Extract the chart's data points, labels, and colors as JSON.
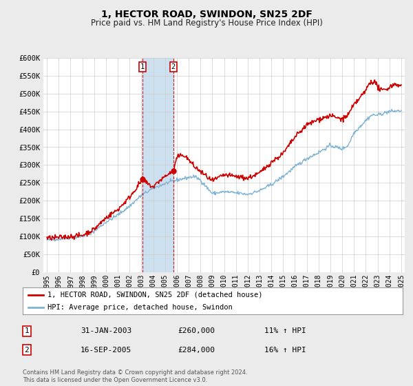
{
  "title": "1, HECTOR ROAD, SWINDON, SN25 2DF",
  "subtitle": "Price paid vs. HM Land Registry's House Price Index (HPI)",
  "ylim": [
    0,
    600000
  ],
  "yticks": [
    0,
    50000,
    100000,
    150000,
    200000,
    250000,
    300000,
    350000,
    400000,
    450000,
    500000,
    550000,
    600000
  ],
  "ytick_labels": [
    "£0",
    "£50K",
    "£100K",
    "£150K",
    "£200K",
    "£250K",
    "£300K",
    "£350K",
    "£400K",
    "£450K",
    "£500K",
    "£550K",
    "£600K"
  ],
  "xlim_start": 1994.7,
  "xlim_end": 2025.3,
  "xtick_years": [
    1995,
    1996,
    1997,
    1998,
    1999,
    2000,
    2001,
    2002,
    2003,
    2004,
    2005,
    2006,
    2007,
    2008,
    2009,
    2010,
    2011,
    2012,
    2013,
    2014,
    2015,
    2016,
    2017,
    2018,
    2019,
    2020,
    2021,
    2022,
    2023,
    2024,
    2025
  ],
  "red_color": "#cc0000",
  "blue_color": "#7fb3d3",
  "sale1_x": 2003.083,
  "sale1_y": 260000,
  "sale2_x": 2005.708,
  "sale2_y": 284000,
  "vline_shade_x1": 2003.083,
  "vline_shade_x2": 2005.708,
  "shade_color": "#cce0f0",
  "legend_label_red": "1, HECTOR ROAD, SWINDON, SN25 2DF (detached house)",
  "legend_label_blue": "HPI: Average price, detached house, Swindon",
  "annotation1_num": "1",
  "annotation1_date": "31-JAN-2003",
  "annotation1_price": "£260,000",
  "annotation1_hpi": "11% ↑ HPI",
  "annotation2_num": "2",
  "annotation2_date": "16-SEP-2005",
  "annotation2_price": "£284,000",
  "annotation2_hpi": "16% ↑ HPI",
  "footnote1": "Contains HM Land Registry data © Crown copyright and database right 2024.",
  "footnote2": "This data is licensed under the Open Government Licence v3.0.",
  "bg_color": "#ebebeb",
  "plot_bg_color": "#ffffff",
  "grid_color": "#cccccc"
}
